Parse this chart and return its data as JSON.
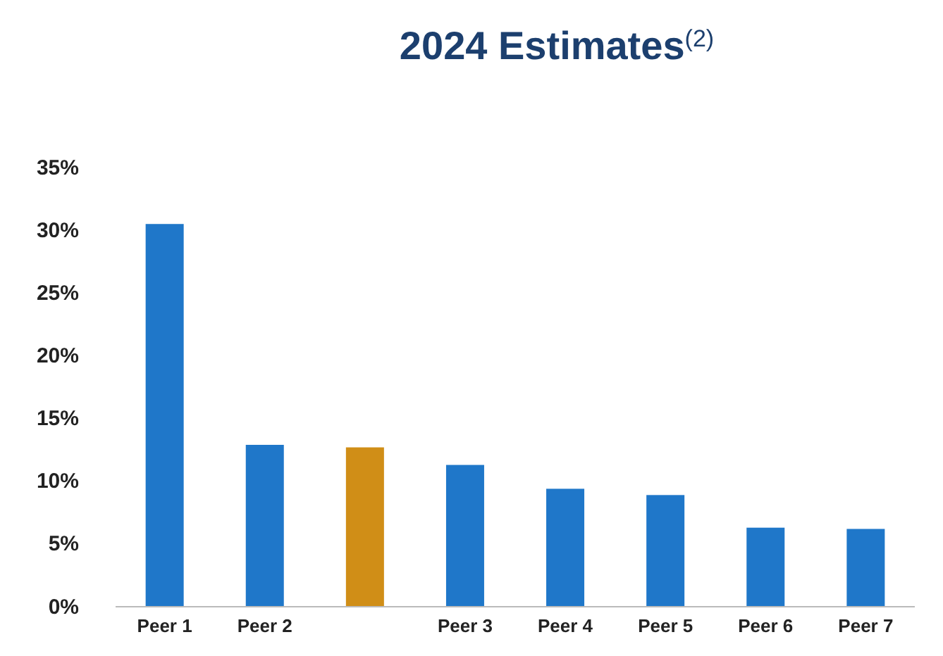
{
  "chart_data": {
    "type": "bar",
    "title": "2024 Estimates$^{(2)}$",
    "categories": [
      "Peer 1",
      "Peer 2",
      null,
      "Peer 3",
      "Peer 4",
      "Peer 5",
      "Peer 6",
      "Peer 7"
    ],
    "values": [
      30.5,
      12.9,
      12.7,
      11.3,
      9.4,
      8.9,
      6.3,
      6.2
    ],
    "colors": [
      "#1f77c9",
      "#1f77c9",
      "#d08e17",
      "#1f77c9",
      "#1f77c9",
      "#1f77c9",
      "#1f77c9",
      "#1f77c9"
    ],
    "ylim": [
      0,
      35
    ],
    "yticks": [
      {
        "value": 0,
        "label": "0%"
      },
      {
        "value": 5,
        "label": "5%"
      },
      {
        "value": 10,
        "label": "10%"
      },
      {
        "value": 15,
        "label": "15%"
      },
      {
        "value": 20,
        "label": "20%"
      },
      {
        "value": 25,
        "label": "25%"
      },
      {
        "value": 30,
        "label": "30%"
      },
      {
        "value": 35,
        "label": "35%"
      }
    ],
    "grid": false
  }
}
